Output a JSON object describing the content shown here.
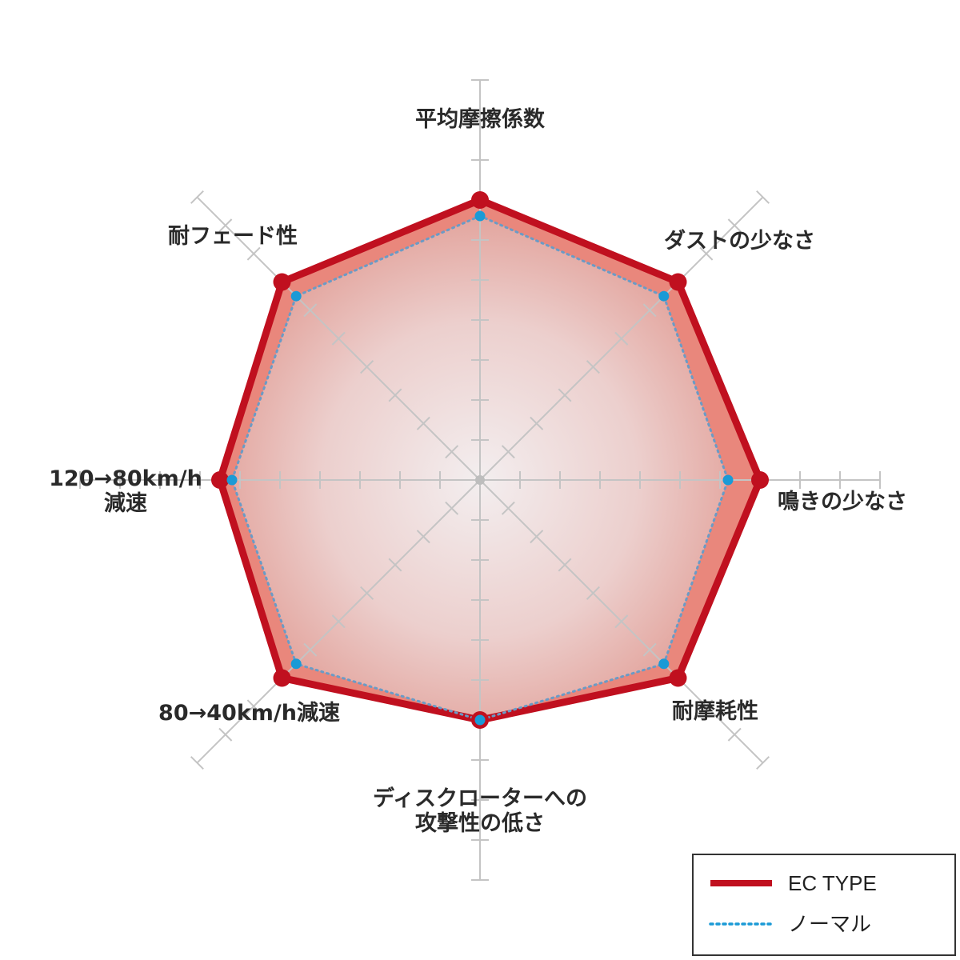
{
  "chart_data": {
    "type": "radar",
    "title": "",
    "axes": [
      {
        "line1": "平均摩擦係数",
        "line2": ""
      },
      {
        "line1": "ダストの少なさ",
        "line2": ""
      },
      {
        "line1": "鳴きの少なさ",
        "line2": ""
      },
      {
        "line1": "耐摩耗性",
        "line2": ""
      },
      {
        "line1": "ディスクローターへの",
        "line2": "攻撃性の低さ"
      },
      {
        "line1": "80→40km/h減速",
        "line2": ""
      },
      {
        "line1": "120→80km/h",
        "line2": "減速"
      },
      {
        "line1": "耐フェード性",
        "line2": ""
      }
    ],
    "rmax": 10,
    "grid_ticks": 10,
    "series": [
      {
        "name": "EC TYPE",
        "values": [
          7,
          7,
          7,
          7,
          6,
          7,
          6.5,
          7
        ],
        "color": "#c0101f",
        "style": "solid"
      },
      {
        "name": "ノーマル",
        "values": [
          6.6,
          6.5,
          6.2,
          6.5,
          6,
          6.5,
          6.2,
          6.5
        ],
        "color": "#1a9ad6",
        "style": "dotted"
      }
    ],
    "fill_color": "#e9877c",
    "grid_color": "#c4c4c4",
    "legend_position": "bottom-right"
  }
}
